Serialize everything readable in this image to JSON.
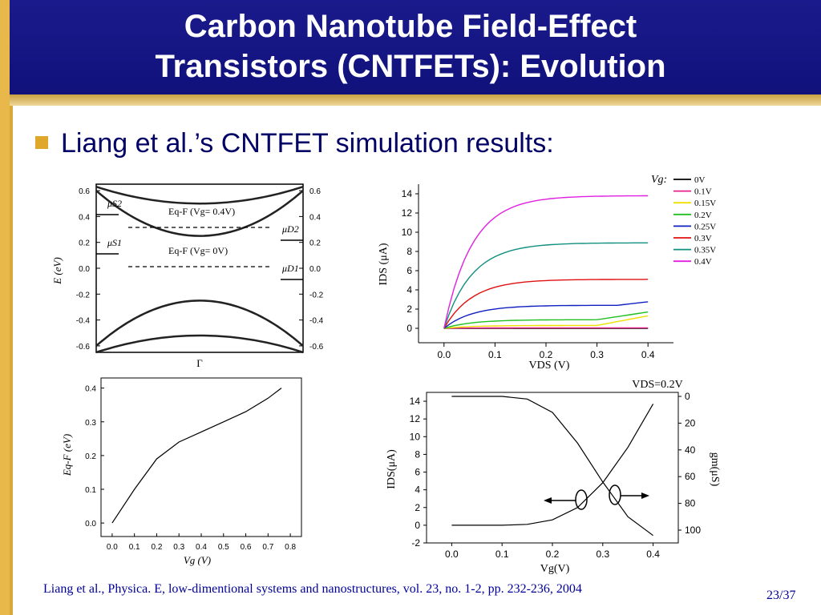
{
  "slide": {
    "title_line1": "Carbon Nanotube Field-Effect",
    "title_line2": "Transistors (CNTFETs): Evolution",
    "bullet": "Liang et al.’s CNTFET simulation results:",
    "citation": "Liang et al., Physica. E, low-dimentional systems and nanostructures, vol. 23, no. 1-2, pp. 232-236, 2004",
    "page": "23/37",
    "colors": {
      "header_bg": "#14147f",
      "accent": "#e0a82a",
      "text": "#000066"
    }
  },
  "chart_data": [
    {
      "type": "line",
      "name": "band-diagram",
      "y_ticks": [
        "0.6",
        "0.4",
        "0.2",
        "0.0",
        "-0.2",
        "-0.4",
        "-0.6"
      ],
      "ylabel": "E (eV)",
      "xlabel": "Γ",
      "ylim": [
        -0.65,
        0.65
      ],
      "annotations": [
        "μS2",
        "μS1",
        "μD2",
        "μD1",
        "Eq-F (Vg= 0.4V)",
        "Eq-F (Vg= 0V)"
      ],
      "series": [
        {
          "name": "upper-band-outer",
          "points": [
            [
              0,
              0.63
            ],
            [
              0.5,
              0.5
            ],
            [
              1,
              0.63
            ]
          ]
        },
        {
          "name": "upper-band-inner",
          "points": [
            [
              0,
              0.6
            ],
            [
              0.5,
              0.25
            ],
            [
              1,
              0.6
            ]
          ]
        },
        {
          "name": "lower-band-inner",
          "points": [
            [
              0,
              -0.6
            ],
            [
              0.5,
              -0.25
            ],
            [
              1,
              -0.6
            ]
          ]
        },
        {
          "name": "lower-band-outer",
          "points": [
            [
              0,
              -0.65
            ],
            [
              0.5,
              -0.52
            ],
            [
              1,
              -0.65
            ]
          ]
        }
      ]
    },
    {
      "type": "line",
      "name": "ids-vds",
      "x_ticks": [
        "0.0",
        "0.1",
        "0.2",
        "0.3",
        "0.4"
      ],
      "y_ticks": [
        "14",
        "12",
        "10",
        "8",
        "6",
        "4",
        "2",
        "0"
      ],
      "xlabel": "VDS (V)",
      "ylabel": "IDS (μA)",
      "xlim": [
        -0.05,
        0.45
      ],
      "ylim": [
        -1.5,
        15
      ],
      "legend_title": "Vg:",
      "legend": "top-right",
      "series": [
        {
          "name": "0V",
          "color": "#000000",
          "saturation": 0.0
        },
        {
          "name": "0.1V",
          "color": "#e8208a",
          "saturation": 0.05
        },
        {
          "name": "0.15V",
          "color": "#f0e000",
          "saturation": 0.3
        },
        {
          "name": "0.2V",
          "color": "#20c020",
          "saturation": 0.9
        },
        {
          "name": "0.25V",
          "color": "#1020c0",
          "saturation": 2.4
        },
        {
          "name": "0.3V",
          "color": "#e01010",
          "saturation": 5.1
        },
        {
          "name": "0.35V",
          "color": "#109080",
          "saturation": 8.9
        },
        {
          "name": "0.4V",
          "color": "#e020e0",
          "saturation": 13.8
        }
      ]
    },
    {
      "type": "line",
      "name": "eqf-vg",
      "x_ticks": [
        "0.0",
        "0.1",
        "0.2",
        "0.3",
        "0.4",
        "0.5",
        "0.6",
        "0.7",
        "0.8"
      ],
      "y_ticks": [
        "0.4",
        "0.3",
        "0.2",
        "0.1",
        "0.0"
      ],
      "xlabel": "Vg (V)",
      "ylabel": "Eq-F (eV)",
      "xlim": [
        -0.05,
        0.85
      ],
      "ylim": [
        -0.04,
        0.43
      ],
      "x": [
        0.0,
        0.1,
        0.2,
        0.3,
        0.4,
        0.5,
        0.6,
        0.7,
        0.76
      ],
      "y": [
        0.0,
        0.1,
        0.19,
        0.24,
        0.27,
        0.3,
        0.33,
        0.37,
        0.4
      ]
    },
    {
      "type": "line",
      "name": "ids-gm-vg",
      "title": "VDS=0.2V",
      "x_ticks": [
        "0.0",
        "0.1",
        "0.2",
        "0.3",
        "0.4"
      ],
      "y_ticks": [
        "14",
        "12",
        "10",
        "8",
        "6",
        "4",
        "2",
        "0",
        "-2"
      ],
      "y2_ticks": [
        "0",
        "20",
        "40",
        "60",
        "80",
        "100"
      ],
      "xlabel": "Vg(V)",
      "ylabel": "IDS(μA)",
      "y2label": "gm(μS)",
      "xlim": [
        -0.05,
        0.45
      ],
      "ylim": [
        -2,
        15
      ],
      "series": [
        {
          "name": "IDS",
          "x": [
            0.0,
            0.1,
            0.15,
            0.2,
            0.25,
            0.3,
            0.35,
            0.4
          ],
          "y": [
            0.0,
            0.0,
            0.1,
            0.6,
            2.0,
            4.8,
            8.8,
            13.7
          ]
        },
        {
          "name": "gm",
          "x": [
            0.0,
            0.1,
            0.15,
            0.2,
            0.25,
            0.3,
            0.35,
            0.4
          ],
          "y": [
            0,
            0,
            2,
            12,
            35,
            64,
            90,
            104
          ]
        }
      ]
    }
  ]
}
